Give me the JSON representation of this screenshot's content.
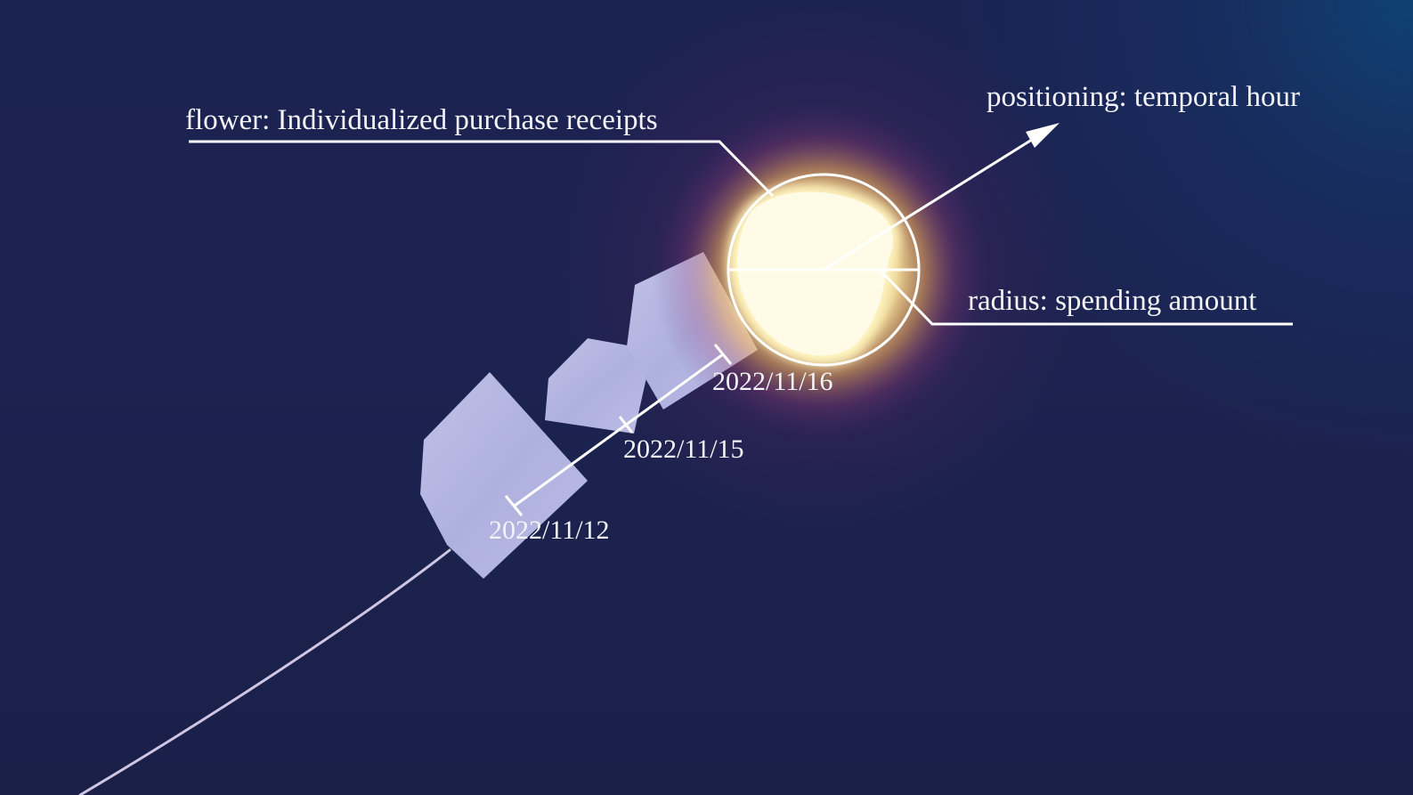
{
  "annotations": {
    "flower_label": "flower: Individualized purchase receipts",
    "positioning_label": "positioning: temporal hour",
    "radius_label": "radius: spending amount"
  },
  "dates": {
    "d1": "2022/11/12",
    "d2": "2022/11/15",
    "d3": "2022/11/16"
  },
  "colors": {
    "background": "#1c2350",
    "petal": "#b3b4e0",
    "glow": "#fff3b8",
    "line": "#ffffff"
  }
}
